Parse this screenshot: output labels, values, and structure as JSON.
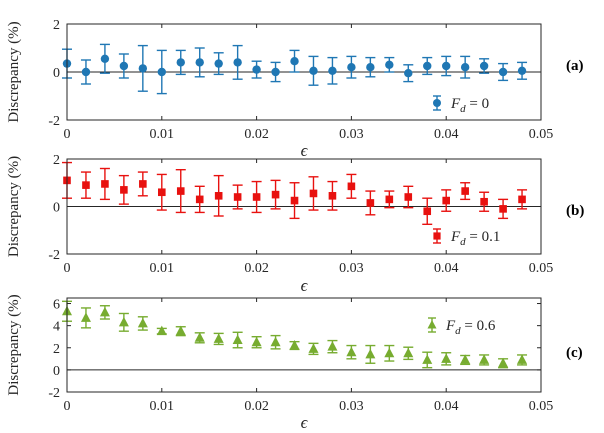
{
  "chart_data": [
    {
      "type": "scatter",
      "panel_label": "(a)",
      "ylabel": "Discrepancy  (%)",
      "xlabel": "ϵ",
      "xlim": [
        0,
        0.05
      ],
      "ylim": [
        -2,
        2
      ],
      "xticks": [
        "0",
        "0.01",
        "0.02",
        "0.03",
        "0.04",
        "0.05"
      ],
      "yticks": [
        "-2",
        "0",
        "2"
      ],
      "legend": {
        "text": "F_d = 0",
        "symbol": "F",
        "sub": "d",
        "rest": " = 0",
        "position": "bottom-right"
      },
      "marker": "circle",
      "color": "#1f77b4",
      "series": [
        {
          "name": "F_d = 0",
          "x": [
            0.0,
            0.002,
            0.004,
            0.006,
            0.008,
            0.01,
            0.012,
            0.014,
            0.016,
            0.018,
            0.02,
            0.022,
            0.024,
            0.026,
            0.028,
            0.03,
            0.032,
            0.034,
            0.036,
            0.038,
            0.04,
            0.042,
            0.044,
            0.046,
            0.048
          ],
          "y": [
            0.35,
            0.0,
            0.55,
            0.25,
            0.15,
            0.0,
            0.4,
            0.4,
            0.35,
            0.4,
            0.1,
            0.0,
            0.45,
            0.05,
            0.05,
            0.2,
            0.2,
            0.3,
            -0.05,
            0.25,
            0.25,
            0.2,
            0.25,
            0.0,
            0.05
          ],
          "err": [
            0.6,
            0.5,
            0.6,
            0.5,
            0.95,
            0.9,
            0.5,
            0.6,
            0.45,
            0.7,
            0.35,
            0.4,
            0.45,
            0.6,
            0.55,
            0.45,
            0.4,
            0.3,
            0.35,
            0.35,
            0.4,
            0.45,
            0.3,
            0.35,
            0.35
          ]
        }
      ]
    },
    {
      "type": "scatter",
      "panel_label": "(b)",
      "ylabel": "Discrepancy  (%)",
      "xlabel": "ϵ",
      "xlim": [
        0,
        0.05
      ],
      "ylim": [
        -2,
        2
      ],
      "xticks": [
        "0",
        "0.01",
        "0.02",
        "0.03",
        "0.04",
        "0.05"
      ],
      "yticks": [
        "-2",
        "0",
        "2"
      ],
      "legend": {
        "text": "F_d = 0.1",
        "symbol": "F",
        "sub": "d",
        "rest": " = 0.1",
        "position": "bottom-right"
      },
      "marker": "square",
      "color": "#e8110f",
      "series": [
        {
          "name": "F_d = 0.1",
          "x": [
            0.0,
            0.002,
            0.004,
            0.006,
            0.008,
            0.01,
            0.012,
            0.014,
            0.016,
            0.018,
            0.02,
            0.022,
            0.024,
            0.026,
            0.028,
            0.03,
            0.032,
            0.034,
            0.036,
            0.038,
            0.04,
            0.042,
            0.044,
            0.046,
            0.048
          ],
          "y": [
            1.1,
            0.9,
            0.95,
            0.7,
            0.95,
            0.6,
            0.65,
            0.3,
            0.45,
            0.4,
            0.4,
            0.5,
            0.25,
            0.55,
            0.45,
            0.85,
            0.15,
            0.3,
            0.4,
            -0.2,
            0.25,
            0.65,
            0.2,
            -0.1,
            0.3
          ],
          "err": [
            0.75,
            0.55,
            0.65,
            0.6,
            0.5,
            0.75,
            0.9,
            0.55,
            0.85,
            0.5,
            0.65,
            0.6,
            0.75,
            0.7,
            0.6,
            0.5,
            0.5,
            0.35,
            0.45,
            0.55,
            0.45,
            0.35,
            0.4,
            0.4,
            0.4
          ]
        }
      ]
    },
    {
      "type": "scatter",
      "panel_label": "(c)",
      "ylabel": "Discrepancy  (%)",
      "xlabel": "ϵ",
      "xlim": [
        0,
        0.05
      ],
      "ylim": [
        -2,
        6.5
      ],
      "xticks": [
        "0",
        "0.01",
        "0.02",
        "0.03",
        "0.04",
        "0.05"
      ],
      "yticks": [
        "-2",
        "0",
        "2",
        "4",
        "6"
      ],
      "legend": {
        "text": "F_d = 0.6",
        "symbol": "F",
        "sub": "d",
        "rest": " = 0.6",
        "position": "top-right"
      },
      "marker": "triangle",
      "color": "#77ac30",
      "series": [
        {
          "name": "F_d = 0.6",
          "x": [
            0.0,
            0.002,
            0.004,
            0.006,
            0.008,
            0.01,
            0.012,
            0.014,
            0.016,
            0.018,
            0.02,
            0.022,
            0.024,
            0.026,
            0.028,
            0.03,
            0.032,
            0.034,
            0.036,
            0.038,
            0.04,
            0.042,
            0.044,
            0.046,
            0.048
          ],
          "y": [
            5.3,
            4.7,
            5.2,
            4.3,
            4.2,
            3.5,
            3.5,
            2.9,
            2.8,
            2.7,
            2.5,
            2.5,
            2.2,
            1.9,
            2.1,
            1.6,
            1.4,
            1.5,
            1.5,
            0.9,
            1.0,
            0.9,
            0.9,
            0.6,
            0.9
          ],
          "err": [
            0.9,
            0.9,
            0.6,
            0.8,
            0.6,
            0.25,
            0.4,
            0.45,
            0.5,
            0.7,
            0.5,
            0.6,
            0.35,
            0.5,
            0.55,
            0.6,
            0.8,
            0.7,
            0.55,
            0.7,
            0.55,
            0.4,
            0.45,
            0.4,
            0.45
          ]
        }
      ]
    }
  ]
}
